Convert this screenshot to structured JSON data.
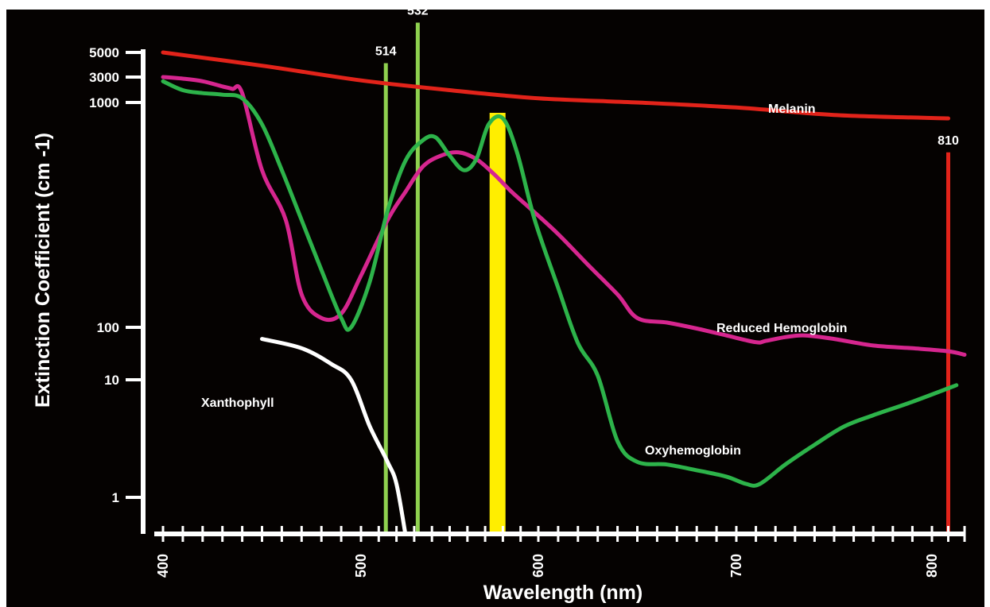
{
  "chart_data": {
    "type": "line",
    "xlabel": "Wavelength (nm)",
    "ylabel": "Extinction Coefficient (cm -1)",
    "x_ticks": [
      "400",
      "500",
      "600",
      "700",
      "800"
    ],
    "y_ticks": [
      "5000",
      "3000",
      "1000",
      "100",
      "10",
      "1"
    ],
    "xlim": [
      400,
      820
    ],
    "colors": {
      "background": "#050201",
      "axis": "#ffffff",
      "melanin": "#e2231a",
      "reduced_hemoglobin": "#d6268f",
      "oxyhemoglobin": "#2db34a",
      "xanthophyll": "#ffffff",
      "laser_514": "#8fd14f",
      "laser_532": "#8fd14f",
      "laser_yellow": "#ffee00",
      "laser_810": "#e2231a"
    },
    "series": [
      {
        "name": "Melanin",
        "color_key": "melanin",
        "points": [
          [
            400,
            5000
          ],
          [
            450,
            3800
          ],
          [
            500,
            2600
          ],
          [
            550,
            1700
          ],
          [
            600,
            1200
          ],
          [
            650,
            1000
          ],
          [
            700,
            950
          ],
          [
            750,
            880
          ],
          [
            810,
            850
          ]
        ]
      },
      {
        "name": "Reduced Hemoglobin",
        "color_key": "reduced_hemoglobin",
        "points": [
          [
            400,
            3000
          ],
          [
            410,
            2800
          ],
          [
            420,
            2500
          ],
          [
            430,
            2000
          ],
          [
            435,
            1800
          ],
          [
            440,
            1500
          ],
          [
            450,
            500
          ],
          [
            462,
            300
          ],
          [
            470,
            140
          ],
          [
            480,
            110
          ],
          [
            490,
            115
          ],
          [
            500,
            170
          ],
          [
            515,
            300
          ],
          [
            525,
            400
          ],
          [
            535,
            520
          ],
          [
            545,
            580
          ],
          [
            555,
            600
          ],
          [
            565,
            560
          ],
          [
            575,
            480
          ],
          [
            585,
            400
          ],
          [
            595,
            340
          ],
          [
            610,
            260
          ],
          [
            625,
            190
          ],
          [
            640,
            140
          ],
          [
            650,
            110
          ],
          [
            665,
            105
          ],
          [
            680,
            95
          ],
          [
            695,
            70
          ],
          [
            710,
            52
          ],
          [
            715,
            55
          ],
          [
            725,
            65
          ],
          [
            735,
            70
          ],
          [
            750,
            60
          ],
          [
            770,
            45
          ],
          [
            790,
            40
          ],
          [
            810,
            35
          ],
          [
            820,
            30
          ]
        ]
      },
      {
        "name": "Oxyhemoglobin",
        "color_key": "oxyhemoglobin",
        "points": [
          [
            400,
            2500
          ],
          [
            410,
            1700
          ],
          [
            420,
            1500
          ],
          [
            430,
            1400
          ],
          [
            440,
            1200
          ],
          [
            450,
            800
          ],
          [
            460,
            500
          ],
          [
            470,
            300
          ],
          [
            480,
            180
          ],
          [
            490,
            110
          ],
          [
            495,
            100
          ],
          [
            505,
            160
          ],
          [
            515,
            330
          ],
          [
            525,
            550
          ],
          [
            535,
            680
          ],
          [
            542,
            700
          ],
          [
            550,
            580
          ],
          [
            558,
            500
          ],
          [
            565,
            560
          ],
          [
            572,
            800
          ],
          [
            580,
            850
          ],
          [
            588,
            600
          ],
          [
            598,
            300
          ],
          [
            610,
            150
          ],
          [
            620,
            50
          ],
          [
            630,
            12
          ],
          [
            640,
            3
          ],
          [
            650,
            2
          ],
          [
            665,
            1.9
          ],
          [
            680,
            1.7
          ],
          [
            695,
            1.5
          ],
          [
            705,
            1.3
          ],
          [
            712,
            1.3
          ],
          [
            725,
            1.9
          ],
          [
            740,
            2.8
          ],
          [
            755,
            4
          ],
          [
            770,
            5
          ],
          [
            790,
            6.5
          ],
          [
            815,
            9
          ]
        ]
      },
      {
        "name": "Xanthophyll",
        "color_key": "xanthophyll",
        "points": [
          [
            450,
            60
          ],
          [
            470,
            40
          ],
          [
            485,
            20
          ],
          [
            495,
            10
          ],
          [
            505,
            4
          ],
          [
            515,
            2
          ],
          [
            520,
            1.3
          ],
          [
            525,
            0.8
          ]
        ]
      }
    ],
    "lasers": [
      {
        "label": "514",
        "wavelength": 514,
        "top_value": 4000,
        "color_key": "laser_514"
      },
      {
        "label": "532",
        "wavelength": 532,
        "top_value": 5800,
        "color_key": "laser_532"
      },
      {
        "label": "",
        "wavelength": 577,
        "top_value": 900,
        "color_key": "laser_yellow"
      },
      {
        "label": "810",
        "wavelength": 810,
        "top_value": 600,
        "color_key": "laser_810"
      }
    ]
  }
}
